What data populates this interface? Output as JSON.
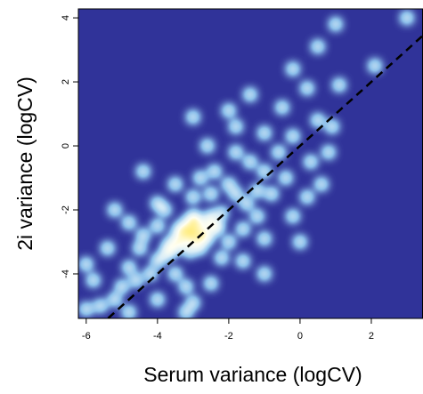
{
  "chart_data": {
    "type": "smooth-scatter",
    "x_label": "Serum variance (logCV)",
    "y_label": "2i variance (logCV)",
    "xlim": [
      -6.22,
      3.45
    ],
    "ylim": [
      -5.39,
      4.28
    ],
    "xticks": [
      -6,
      -4,
      -2,
      0,
      2
    ],
    "yticks": [
      -4,
      -2,
      0,
      2,
      4
    ],
    "reference_line": {
      "slope": 1,
      "intercept": 0,
      "color": "#000000"
    },
    "x": [
      -3,
      -2.8,
      -3.2,
      -2.6,
      -3.4,
      -3,
      -2.9,
      -3.1,
      -2.7,
      -3.3,
      -2.5,
      -3.6,
      -2.4,
      -3.2,
      -2.8,
      -3,
      -3.5,
      -2.2,
      -3.8,
      -2.6,
      -3.1,
      -2.9,
      -3.4,
      -2.3,
      -3.7,
      -4,
      -4.2,
      -1.8,
      -1.5,
      -2,
      -4.5,
      -3.5,
      -2.2,
      -4,
      -1.6,
      -2.5,
      -3,
      -4.6,
      -1.2,
      -2,
      -3.8,
      -1,
      -1.4,
      -0.8,
      -2.4,
      -4.8,
      -5,
      -3.2,
      -1.2,
      -0.6,
      -1.8,
      -0.4,
      -2.8,
      -4.4,
      -5.2,
      -5.8,
      -6,
      -5.6,
      -4.8,
      -4,
      -3,
      -5.4,
      -4.8,
      -4,
      -3.5,
      -2.6,
      -1.8,
      -1,
      -0.2,
      0.3,
      0.2,
      -0.2,
      -1,
      -1.6,
      -2.5,
      0.5,
      -0.5,
      0.8,
      0,
      0.6,
      -3,
      -2,
      0.2,
      1.1,
      -0.2,
      0.5,
      1,
      2.1,
      3,
      -1.4,
      0.9,
      -5.2,
      -6,
      -4.4,
      -3.2,
      -1
    ],
    "y": [
      -2.8,
      -2.6,
      -3,
      -2.4,
      -3.1,
      -2.5,
      -3,
      -2.7,
      -2.8,
      -2.7,
      -2.2,
      -3.3,
      -2.6,
      -2.4,
      -3.2,
      -2.2,
      -2.9,
      -2.1,
      -3.4,
      -2.9,
      -3.3,
      -2.3,
      -2.6,
      -2.5,
      -3.1,
      -3.6,
      -4,
      -1.5,
      -1.8,
      -1.2,
      -3.2,
      -4,
      -3.5,
      -2.5,
      -2.6,
      -1.5,
      -1.6,
      -4.2,
      -1.4,
      -3,
      -2,
      -0.8,
      -0.5,
      -1.5,
      -0.8,
      -3.8,
      -4.4,
      -4.4,
      -2.2,
      -0.2,
      -0.2,
      -1,
      -1,
      -2.8,
      -4.8,
      -4.2,
      -3.7,
      -5,
      -5.2,
      -4.8,
      -4.9,
      -3.2,
      -2.4,
      -1.8,
      -1.2,
      0,
      0.6,
      0.4,
      0.3,
      -0.5,
      -1.6,
      -2.2,
      -2.9,
      -3.6,
      -4.3,
      0.8,
      1.2,
      -0.2,
      -3,
      -1.2,
      0.9,
      1.1,
      1.8,
      1.9,
      2.4,
      3.1,
      3.8,
      2.5,
      4,
      1.6,
      0.6,
      -2,
      -5.1,
      -0.8,
      -5.2,
      -4
    ]
  }
}
